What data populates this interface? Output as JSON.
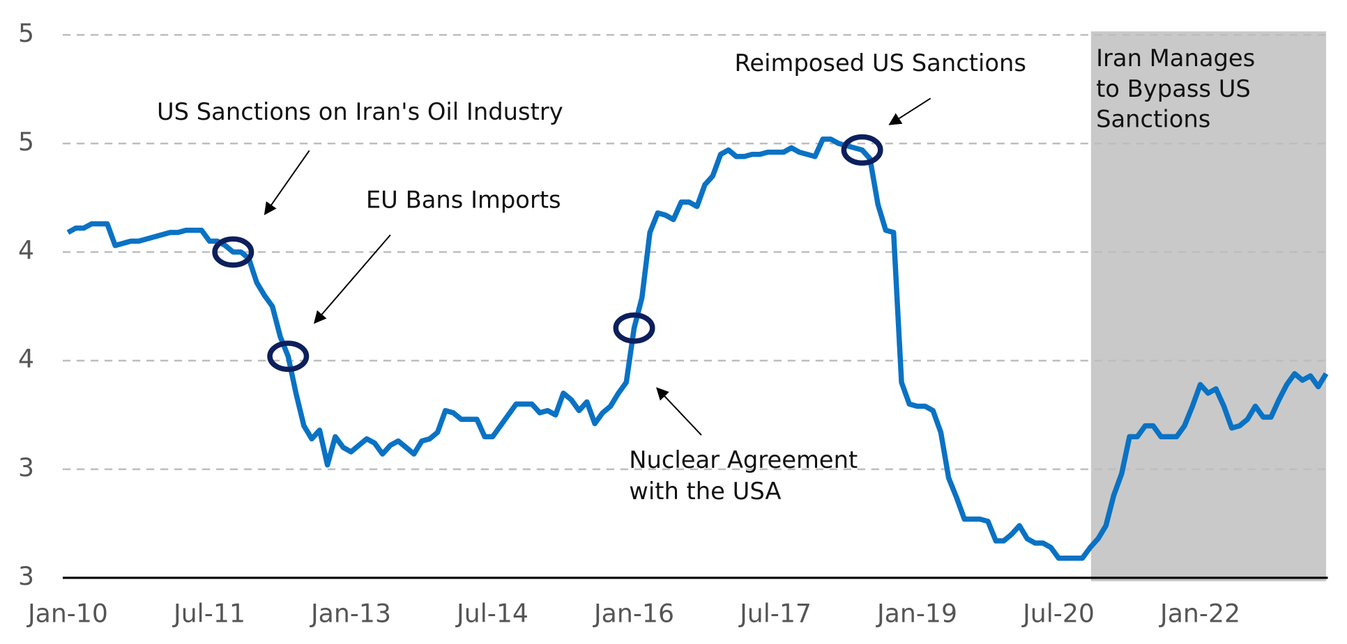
{
  "chart_data": {
    "type": "line",
    "x": [
      "2010-01",
      "2010-02",
      "2010-03",
      "2010-04",
      "2010-05",
      "2010-06",
      "2010-07",
      "2010-08",
      "2010-09",
      "2010-10",
      "2010-11",
      "2010-12",
      "2011-01",
      "2011-02",
      "2011-03",
      "2011-04",
      "2011-05",
      "2011-06",
      "2011-07",
      "2011-08",
      "2011-09",
      "2011-10",
      "2011-11",
      "2011-12",
      "2012-01",
      "2012-02",
      "2012-03",
      "2012-04",
      "2012-05",
      "2012-06",
      "2012-07",
      "2012-08",
      "2012-09",
      "2012-10",
      "2012-11",
      "2012-12",
      "2013-01",
      "2013-02",
      "2013-03",
      "2013-04",
      "2013-05",
      "2013-06",
      "2013-07",
      "2013-08",
      "2013-09",
      "2013-10",
      "2013-11",
      "2013-12",
      "2014-01",
      "2014-02",
      "2014-03",
      "2014-04",
      "2014-05",
      "2014-06",
      "2014-07",
      "2014-08",
      "2014-09",
      "2014-10",
      "2014-11",
      "2014-12",
      "2015-01",
      "2015-02",
      "2015-03",
      "2015-04",
      "2015-05",
      "2015-06",
      "2015-07",
      "2015-08",
      "2015-09",
      "2015-10",
      "2015-11",
      "2015-12",
      "2016-01",
      "2016-02",
      "2016-03",
      "2016-04",
      "2016-05",
      "2016-06",
      "2016-07",
      "2016-08",
      "2016-09",
      "2016-10",
      "2016-11",
      "2016-12",
      "2017-01",
      "2017-02",
      "2017-03",
      "2017-04",
      "2017-05",
      "2017-06",
      "2017-07",
      "2017-08",
      "2017-09",
      "2017-10",
      "2017-11",
      "2017-12",
      "2018-01",
      "2018-02",
      "2018-03",
      "2018-04",
      "2018-05",
      "2018-06",
      "2018-07",
      "2018-08",
      "2018-09",
      "2018-10",
      "2018-11",
      "2018-12",
      "2019-01",
      "2019-02",
      "2019-03",
      "2019-04",
      "2019-05",
      "2019-06",
      "2019-07",
      "2019-08",
      "2019-09",
      "2019-10",
      "2019-11",
      "2019-12",
      "2020-01",
      "2020-02",
      "2020-03",
      "2020-04",
      "2020-05",
      "2020-06",
      "2020-07",
      "2020-08",
      "2020-09",
      "2020-10",
      "2020-11",
      "2020-12",
      "2021-01",
      "2021-02",
      "2021-03",
      "2021-04",
      "2021-05",
      "2021-06",
      "2021-07",
      "2021-08",
      "2021-09",
      "2021-10",
      "2021-11",
      "2021-12",
      "2022-01",
      "2022-02",
      "2022-03",
      "2022-04",
      "2022-05",
      "2022-06",
      "2022-07",
      "2022-08",
      "2022-09",
      "2022-10",
      "2022-11",
      "2022-12",
      "2023-01",
      "2023-02",
      "2023-03",
      "2023-04",
      "2023-05"
    ],
    "series": [
      {
        "color": "#0a72c4",
        "values": [
          4.09,
          4.11,
          4.11,
          4.13,
          4.13,
          4.13,
          4.03,
          4.04,
          4.05,
          4.05,
          4.06,
          4.07,
          4.08,
          4.09,
          4.09,
          4.1,
          4.1,
          4.1,
          4.05,
          4.05,
          4.03,
          4.0,
          4.0,
          3.97,
          3.86,
          3.8,
          3.75,
          3.61,
          3.52,
          3.35,
          3.2,
          3.14,
          3.18,
          3.02,
          3.15,
          3.1,
          3.08,
          3.11,
          3.14,
          3.12,
          3.07,
          3.11,
          3.13,
          3.1,
          3.07,
          3.13,
          3.14,
          3.17,
          3.27,
          3.26,
          3.23,
          3.23,
          3.23,
          3.15,
          3.15,
          3.2,
          3.25,
          3.3,
          3.3,
          3.3,
          3.26,
          3.27,
          3.25,
          3.35,
          3.32,
          3.27,
          3.31,
          3.21,
          3.26,
          3.29,
          3.35,
          3.4,
          3.65,
          3.79,
          4.09,
          4.18,
          4.17,
          4.15,
          4.23,
          4.23,
          4.21,
          4.31,
          4.35,
          4.45,
          4.47,
          4.44,
          4.44,
          4.45,
          4.45,
          4.46,
          4.46,
          4.46,
          4.48,
          4.46,
          4.45,
          4.44,
          4.52,
          4.52,
          4.5,
          4.49,
          4.48,
          4.47,
          4.43,
          4.22,
          4.1,
          4.09,
          3.4,
          3.3,
          3.29,
          3.29,
          3.27,
          3.17,
          2.96,
          2.87,
          2.77,
          2.77,
          2.77,
          2.76,
          2.67,
          2.67,
          2.7,
          2.74,
          2.68,
          2.66,
          2.66,
          2.64,
          2.59,
          2.59,
          2.59,
          2.59,
          2.64,
          2.68,
          2.74,
          2.88,
          2.98,
          3.15,
          3.15,
          3.2,
          3.2,
          3.15,
          3.15,
          3.15,
          3.2,
          3.29,
          3.39,
          3.35,
          3.37,
          3.29,
          3.19,
          3.2,
          3.23,
          3.29,
          3.24,
          3.24,
          3.32,
          3.39,
          3.44,
          3.41,
          3.43,
          3.38,
          3.44
        ]
      }
    ],
    "xlim": [
      "2010-01",
      "2023-05"
    ],
    "xticks": [
      {
        "value": "2010-01",
        "label": "Jan-10"
      },
      {
        "value": "2011-07",
        "label": "Jul-11"
      },
      {
        "value": "2013-01",
        "label": "Jan-13"
      },
      {
        "value": "2014-07",
        "label": "Jul-14"
      },
      {
        "value": "2016-01",
        "label": "Jan-16"
      },
      {
        "value": "2017-07",
        "label": "Jul-17"
      },
      {
        "value": "2019-01",
        "label": "Jan-19"
      },
      {
        "value": "2020-07",
        "label": "Jul-20"
      },
      {
        "value": "2022-01",
        "label": "Jan-22"
      }
    ],
    "ylim": [
      2.5,
      5.0
    ],
    "yticks": [
      {
        "value": 2.5,
        "label": "3"
      },
      {
        "value": 3.0,
        "label": "3"
      },
      {
        "value": 3.5,
        "label": "4"
      },
      {
        "value": 4.0,
        "label": "4"
      },
      {
        "value": 4.5,
        "label": "5"
      },
      {
        "value": 5.0,
        "label": "5"
      }
    ],
    "grid": true,
    "shade": {
      "from": "2020-10",
      "to": "2023-05",
      "color": "#c9c9c9",
      "label": [
        "Iran Manages",
        "to Bypass US",
        "Sanctions"
      ]
    },
    "annotations": [
      {
        "text": [
          "US Sanctions on Iran's Oil Industry"
        ],
        "x": "2011-10"
      },
      {
        "text": [
          "EU Bans Imports"
        ],
        "x": "2012-05"
      },
      {
        "text": [
          "Nuclear Agreement",
          "with the USA"
        ],
        "x": "2016-01"
      },
      {
        "text": [
          "Reimposed US Sanctions"
        ],
        "x": "2018-06"
      }
    ]
  }
}
